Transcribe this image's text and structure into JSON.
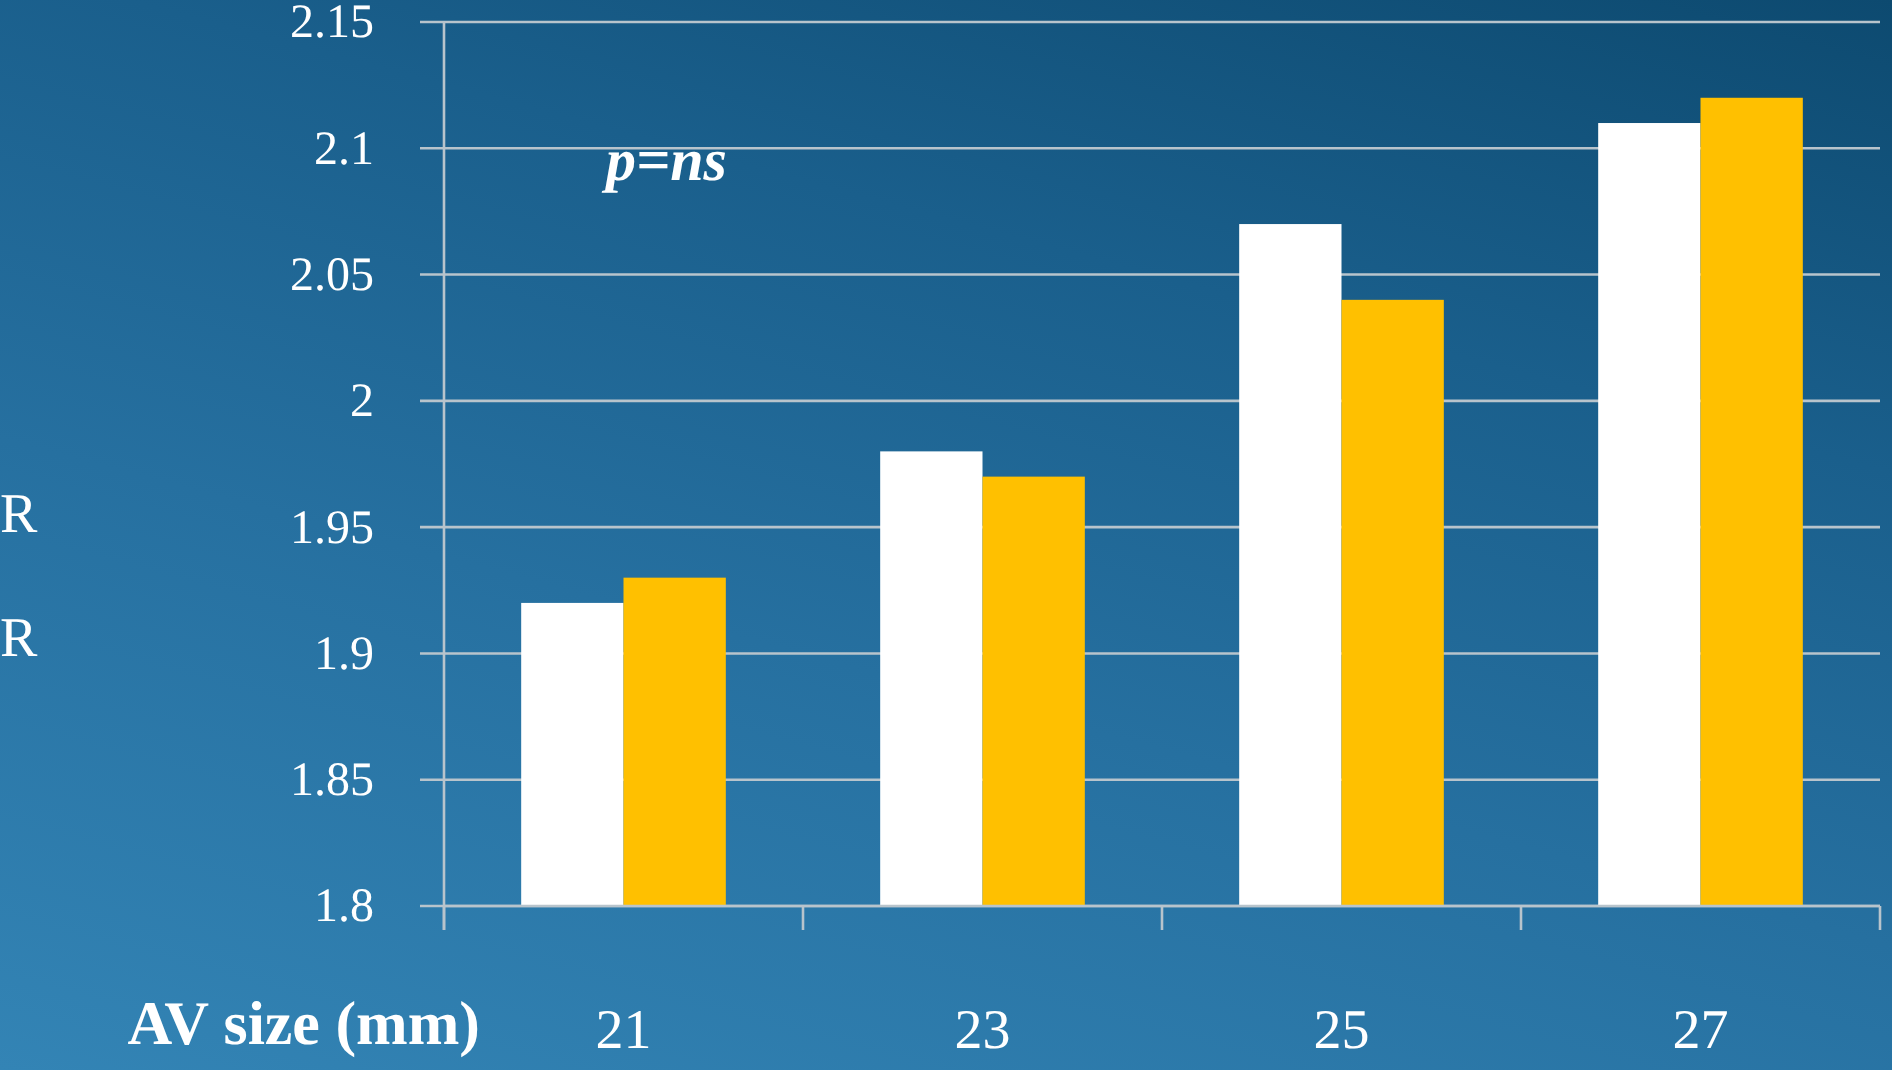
{
  "chart_data": {
    "type": "bar",
    "categories": [
      "21",
      "23",
      "25",
      "27"
    ],
    "series": [
      {
        "color": "#ffffff",
        "values": [
          1.92,
          1.98,
          2.07,
          2.11
        ]
      },
      {
        "color": "#ffc000",
        "values": [
          1.93,
          1.97,
          2.04,
          2.12
        ]
      }
    ],
    "xlabel": "AV size (mm)",
    "annotations": [
      "p=ns",
      "R",
      "R"
    ],
    "ylim": [
      1.8,
      2.15
    ],
    "yticks": [
      1.8,
      1.85,
      1.9,
      1.95,
      2,
      2.05,
      2.1,
      2.15
    ],
    "grid": "y"
  }
}
